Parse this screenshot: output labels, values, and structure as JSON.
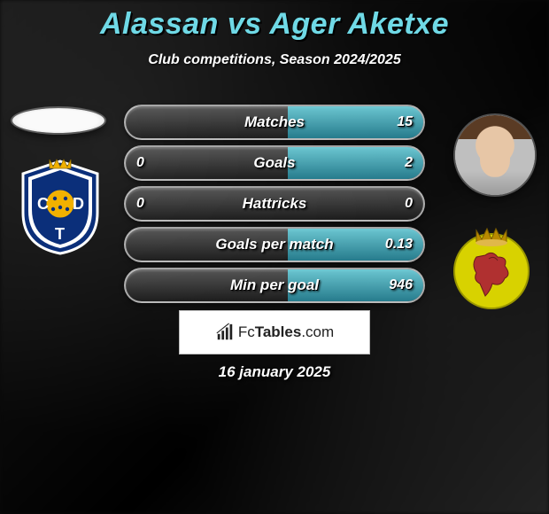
{
  "title": "Alassan vs Ager Aketxe",
  "subtitle": "Club competitions, Season 2024/2025",
  "date": "16 january 2025",
  "players": {
    "left": {
      "name": "Alassan",
      "photo_placeholder": true
    },
    "right": {
      "name": "Ager Aketxe"
    }
  },
  "clubs": {
    "left": {
      "shield_colors": {
        "primary": "#0b2f7a",
        "secondary": "#ffffff",
        "accent": "#f2b100",
        "letters_color": "#0b2f7a"
      },
      "letters": [
        "C",
        "D",
        "T"
      ]
    },
    "right": {
      "shield_colors": {
        "primary": "#d8d200",
        "secondary": "#d8d200",
        "crown": "#b88a00",
        "lion": "#b03030"
      }
    }
  },
  "colors": {
    "title": "#6fd9e6",
    "text": "#ffffff",
    "pill_border": "rgba(255,255,255,0.6)",
    "fill_gradient_top": "#6fd9e6",
    "fill_gradient_bottom": "#288ca0",
    "footer_bg": "#ffffff",
    "footer_border": "#bbbbbb"
  },
  "typography": {
    "title_fontsize": 34,
    "subtitle_fontsize": 16,
    "stat_label_fontsize": 17,
    "stat_value_fontsize": 16,
    "date_fontsize": 17,
    "font_style": "italic"
  },
  "stats": {
    "type": "comparison-bars",
    "pill_width": 340,
    "pill_height": 40,
    "pill_radius": 20,
    "rows": [
      {
        "label": "Matches",
        "left": "",
        "right": "15",
        "left_fill_pct": 0,
        "right_fill_pct": 45
      },
      {
        "label": "Goals",
        "left": "0",
        "right": "2",
        "left_fill_pct": 0,
        "right_fill_pct": 45
      },
      {
        "label": "Hattricks",
        "left": "0",
        "right": "0",
        "left_fill_pct": 0,
        "right_fill_pct": 0
      },
      {
        "label": "Goals per match",
        "left": "",
        "right": "0.13",
        "left_fill_pct": 0,
        "right_fill_pct": 45
      },
      {
        "label": "Min per goal",
        "left": "",
        "right": "946",
        "left_fill_pct": 0,
        "right_fill_pct": 45
      }
    ]
  },
  "footer": {
    "brand_prefix": "Fc",
    "brand_bold": "Tables",
    "brand_suffix": ".com"
  }
}
